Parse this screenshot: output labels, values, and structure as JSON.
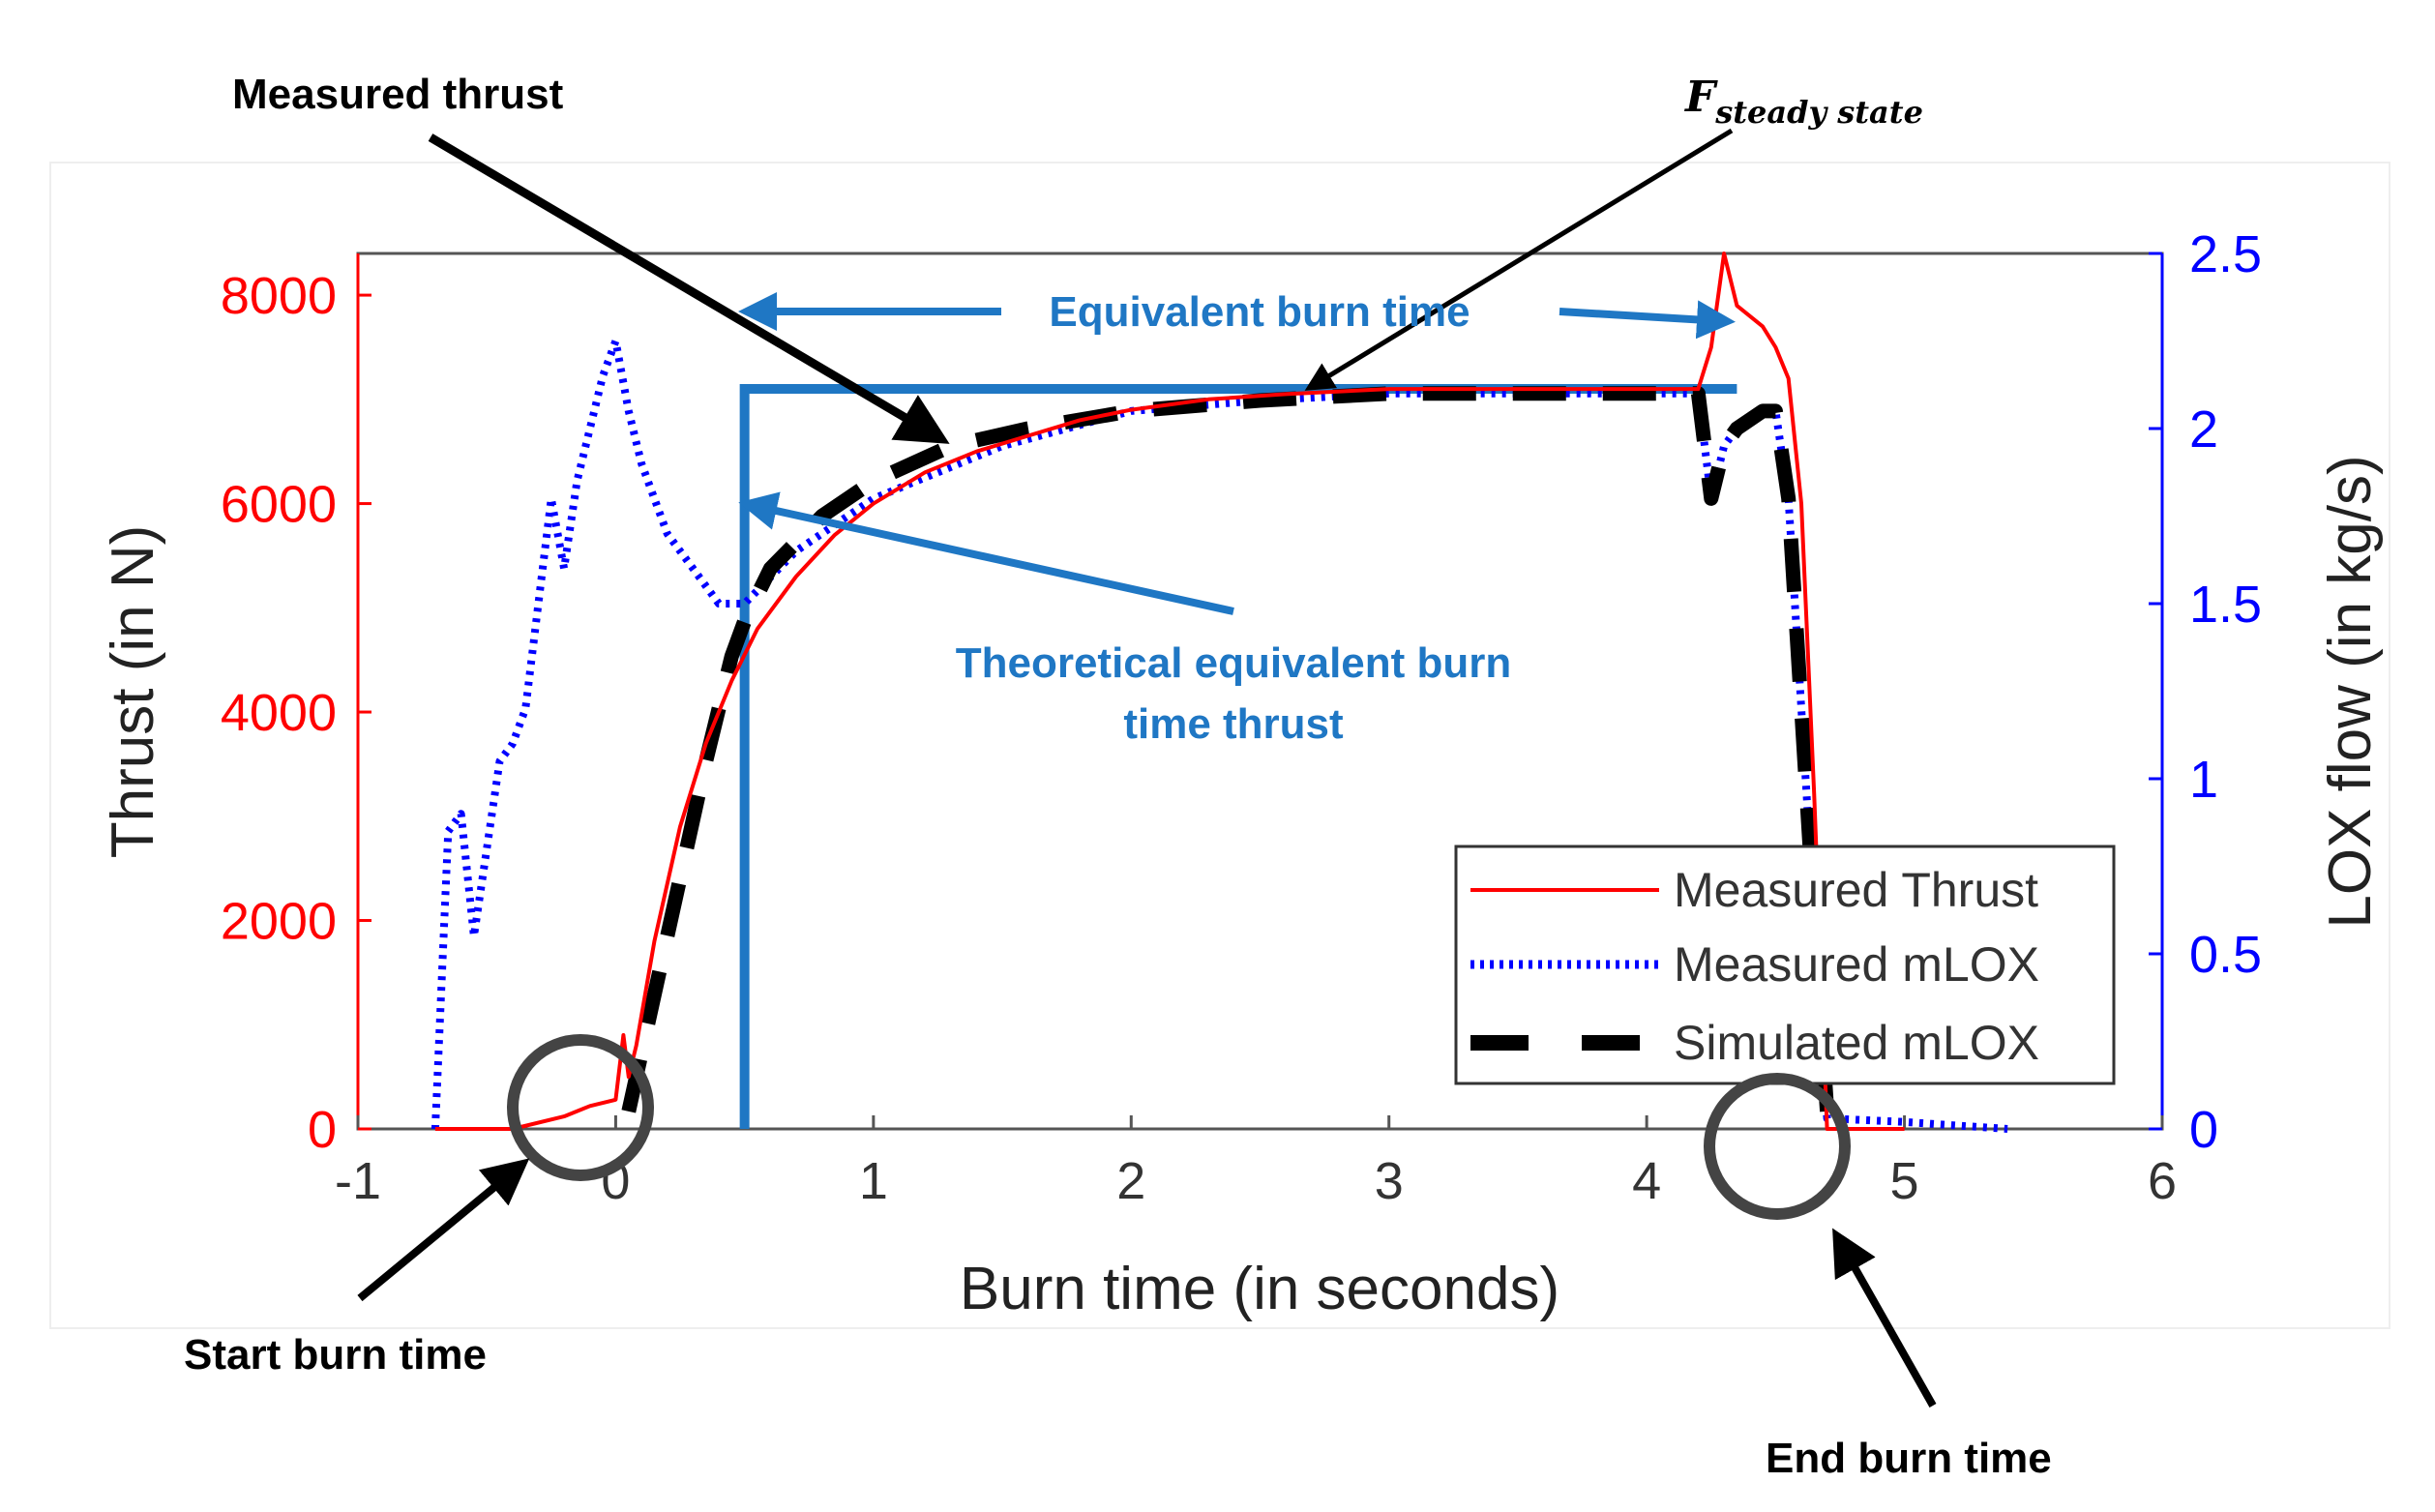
{
  "chart_data": {
    "type": "line",
    "title": "",
    "xlabel": "Burn time (in seconds)",
    "ylabel_left": "Thrust (in N)",
    "ylabel_right": "LOX flow (in kg/s)",
    "xlim": [
      -1,
      6
    ],
    "ylim_left": [
      0,
      8400
    ],
    "ylim_right": [
      0,
      2.5
    ],
    "x_ticks": [
      -1,
      0,
      1,
      2,
      3,
      4,
      5,
      6
    ],
    "y_ticks_left": [
      0,
      2000,
      4000,
      6000,
      8000
    ],
    "y_ticks_right": [
      0,
      0.5,
      1,
      1.5,
      2,
      2.5
    ],
    "y_ticks_right_labels": [
      "0",
      "0.5",
      "1",
      "1.5",
      "2",
      "2.5"
    ],
    "grid": false,
    "legend_position": "bottom-right",
    "series": [
      {
        "name": "Measured Thrust",
        "axis": "left",
        "color": "#ff0000",
        "style": "solid",
        "x": [
          -0.7,
          -0.4,
          -0.2,
          -0.1,
          0.0,
          0.03,
          0.05,
          0.08,
          0.15,
          0.25,
          0.35,
          0.45,
          0.55,
          0.7,
          0.85,
          1.0,
          1.2,
          1.4,
          1.6,
          1.8,
          2.0,
          2.3,
          2.6,
          3.0,
          3.5,
          4.0,
          4.2,
          4.25,
          4.3,
          4.35,
          4.45,
          4.5,
          4.55,
          4.6,
          4.65,
          4.7,
          4.8,
          5.0
        ],
        "y": [
          0,
          0,
          120,
          220,
          280,
          900,
          500,
          800,
          1800,
          2900,
          3700,
          4300,
          4800,
          5300,
          5700,
          6000,
          6300,
          6500,
          6650,
          6800,
          6900,
          7000,
          7050,
          7100,
          7100,
          7100,
          7100,
          7500,
          8400,
          7900,
          7700,
          7500,
          7200,
          6000,
          3200,
          0,
          0,
          0
        ]
      },
      {
        "name": "Measured mLOX",
        "axis": "right",
        "color": "#0000ff",
        "style": "dotted",
        "x": [
          -0.7,
          -0.65,
          -0.6,
          -0.55,
          -0.5,
          -0.45,
          -0.4,
          -0.35,
          -0.3,
          -0.25,
          -0.2,
          -0.15,
          -0.1,
          -0.05,
          0.0,
          0.05,
          0.1,
          0.2,
          0.3,
          0.4,
          0.5,
          0.7,
          1.0,
          1.5,
          2.0,
          2.5,
          3.0,
          3.5,
          4.0,
          4.2,
          4.25,
          4.3,
          4.35,
          4.45,
          4.5,
          4.55,
          4.6,
          4.65,
          4.7,
          5.0,
          5.4
        ],
        "y": [
          0,
          0.85,
          0.9,
          0.55,
          0.8,
          1.05,
          1.1,
          1.2,
          1.5,
          1.8,
          1.6,
          1.85,
          2.0,
          2.15,
          2.25,
          2.05,
          1.9,
          1.7,
          1.6,
          1.5,
          1.5,
          1.65,
          1.8,
          1.95,
          2.05,
          2.08,
          2.1,
          2.1,
          2.1,
          2.1,
          1.8,
          1.95,
          2.0,
          2.05,
          2.05,
          1.8,
          1.2,
          0.6,
          0.03,
          0.02,
          0.0
        ]
      },
      {
        "name": "Simulated mLOX",
        "axis": "right",
        "color": "#000000",
        "style": "dashed",
        "x": [
          0.05,
          0.2,
          0.35,
          0.45,
          0.5,
          0.6,
          0.8,
          1.0,
          1.3,
          1.6,
          2.0,
          2.5,
          3.0,
          3.5,
          4.0,
          4.2,
          4.25,
          4.3,
          4.35,
          4.45,
          4.5,
          4.55,
          4.6,
          4.65,
          4.7
        ],
        "y": [
          0.05,
          0.55,
          1.05,
          1.35,
          1.45,
          1.6,
          1.75,
          1.85,
          1.95,
          2.0,
          2.05,
          2.08,
          2.1,
          2.1,
          2.1,
          2.1,
          1.8,
          1.95,
          2.0,
          2.05,
          2.05,
          1.8,
          1.2,
          0.6,
          0.05
        ]
      }
    ],
    "overlays": {
      "equivalent_burn_time_x": [
        0.5,
        4.35
      ],
      "steady_state_thrust": 7100
    },
    "annotations": {
      "measured_thrust": "Measured  thrust",
      "f_steady_main": "F",
      "f_steady_sub": "steady state",
      "equivalent_burn_time": "Equivalent  burn  time",
      "theoretical_line1": "Theoretical  equivalent  burn",
      "theoretical_line2": "time  thrust",
      "start_burn_time": "Start burn time",
      "end_burn_time": "End burn time"
    },
    "colors": {
      "left_axis": "#ff0000",
      "right_axis": "#0000ff",
      "annotation_blue": "#1f77c4",
      "annotation_black": "#000000",
      "circle": "#444444"
    }
  }
}
